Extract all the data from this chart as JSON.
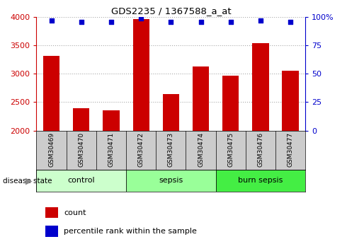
{
  "title": "GDS2235 / 1367588_a_at",
  "samples": [
    "GSM30469",
    "GSM30470",
    "GSM30471",
    "GSM30472",
    "GSM30473",
    "GSM30474",
    "GSM30475",
    "GSM30476",
    "GSM30477"
  ],
  "counts": [
    3310,
    2390,
    2360,
    3960,
    2640,
    3130,
    2970,
    3540,
    3060
  ],
  "percentiles": [
    97,
    96,
    96,
    99,
    96,
    96,
    96,
    97,
    96
  ],
  "groups": [
    {
      "label": "control",
      "indices": [
        0,
        1,
        2
      ],
      "color": "#ccffcc"
    },
    {
      "label": "sepsis",
      "indices": [
        3,
        4,
        5
      ],
      "color": "#99ff99"
    },
    {
      "label": "burn sepsis",
      "indices": [
        6,
        7,
        8
      ],
      "color": "#44ee44"
    }
  ],
  "bar_color": "#cc0000",
  "dot_color": "#0000cc",
  "ylim_left": [
    2000,
    4000
  ],
  "ylim_right": [
    0,
    100
  ],
  "yticks_left": [
    2000,
    2500,
    3000,
    3500,
    4000
  ],
  "yticks_right": [
    0,
    25,
    50,
    75,
    100
  ],
  "tick_color_left": "#cc0000",
  "tick_color_right": "#0000cc",
  "grid_color": "#aaaaaa",
  "sample_bg_color": "#cccccc",
  "bar_width": 0.55
}
